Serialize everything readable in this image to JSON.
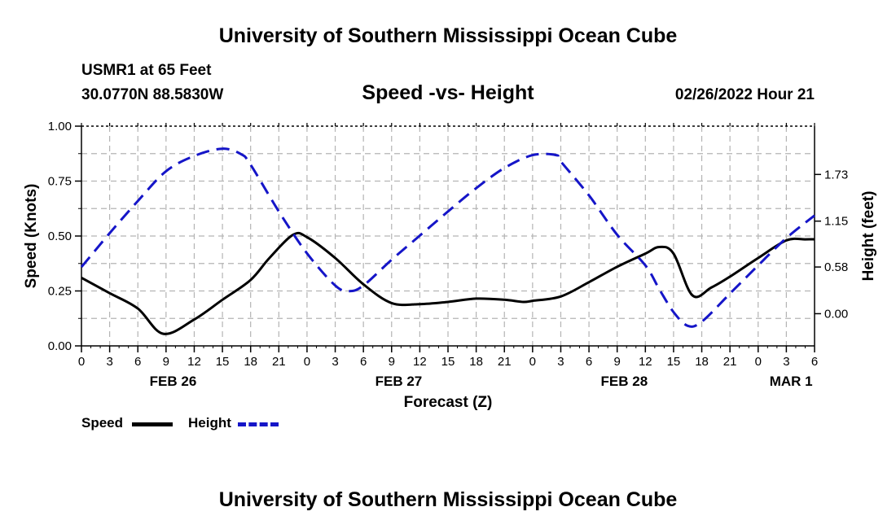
{
  "header": {
    "title": "University of Southern Mississippi Ocean Cube",
    "station": "USMR1 at 65 Feet",
    "coords": "30.0770N  88.5830W",
    "date": "02/26/2022 Hour 21",
    "footer_title": "University of Southern Mississippi Ocean Cube"
  },
  "legend": {
    "speed_label": "Speed",
    "height_label": "Height"
  },
  "colors": {
    "speed": "#000000",
    "height": "#1515c8",
    "grid": "#b4b4b4"
  },
  "chart_data": {
    "type": "line",
    "title": "Speed -vs- Height",
    "xlabel": "Forecast (Z)",
    "ylabel": "Speed (Knots)",
    "y2label": "Height (feet)",
    "x_unit": "hours since FEB 26 00Z",
    "xlim": [
      0,
      78
    ],
    "ylim": [
      0,
      1.0
    ],
    "y2lim": [
      -0.4,
      2.33
    ],
    "x_ticks": [
      0,
      3,
      6,
      9,
      12,
      15,
      18,
      21,
      24,
      27,
      30,
      33,
      36,
      39,
      42,
      45,
      48,
      51,
      54,
      57,
      60,
      63,
      66,
      69,
      72,
      75,
      78
    ],
    "x_tick_labels": [
      "0",
      "3",
      "6",
      "9",
      "12",
      "15",
      "18",
      "21",
      "0",
      "3",
      "6",
      "9",
      "12",
      "15",
      "18",
      "21",
      "0",
      "3",
      "6",
      "9",
      "12",
      "15",
      "18",
      "21",
      "0",
      "3",
      "6"
    ],
    "date_labels": [
      {
        "x": 9.75,
        "label": "FEB 26"
      },
      {
        "x": 33.75,
        "label": "FEB 27"
      },
      {
        "x": 57.75,
        "label": "FEB 28"
      },
      {
        "x": 75.5,
        "label": "MAR 1"
      }
    ],
    "y_ticks": [
      0.0,
      0.25,
      0.5,
      0.75,
      1.0
    ],
    "y_tick_labels": [
      "0.00",
      "0.25",
      "0.50",
      "0.75",
      "1.00"
    ],
    "y2_ticks": [
      0.0,
      0.58,
      1.15,
      1.73
    ],
    "y2_tick_labels": [
      "0.00",
      "0.58",
      "1.15",
      "1.73"
    ],
    "series": [
      {
        "name": "Speed",
        "axis": "left",
        "style": "solid",
        "x": [
          0,
          3,
          6,
          8.7,
          12,
          15,
          18,
          20,
          22.5,
          24,
          27,
          30,
          33,
          36,
          39,
          42,
          45,
          47,
          48,
          51,
          54,
          57,
          60,
          61.5,
          63,
          65,
          67,
          69,
          72,
          75,
          77,
          78
        ],
        "y": [
          0.31,
          0.24,
          0.17,
          0.055,
          0.12,
          0.21,
          0.3,
          0.4,
          0.505,
          0.495,
          0.4,
          0.28,
          0.195,
          0.19,
          0.2,
          0.215,
          0.21,
          0.2,
          0.205,
          0.225,
          0.29,
          0.36,
          0.42,
          0.45,
          0.42,
          0.23,
          0.265,
          0.315,
          0.4,
          0.48,
          0.485,
          0.485
        ]
      },
      {
        "name": "Height",
        "axis": "right",
        "style": "dashed",
        "x": [
          0,
          3,
          6,
          9,
          12,
          15,
          17,
          18,
          21,
          24,
          27,
          28.5,
          30,
          33,
          36,
          39,
          42,
          45,
          48,
          50.5,
          51,
          54,
          57,
          60,
          61.5,
          63,
          64.5,
          66,
          69,
          72,
          75,
          78
        ],
        "y": [
          0.58,
          1.0,
          1.4,
          1.77,
          1.96,
          2.05,
          1.98,
          1.85,
          1.27,
          0.75,
          0.35,
          0.28,
          0.35,
          0.67,
          0.97,
          1.27,
          1.56,
          1.81,
          1.97,
          1.97,
          1.89,
          1.47,
          0.98,
          0.6,
          0.3,
          0.02,
          -0.15,
          -0.1,
          0.25,
          0.6,
          0.94,
          1.22
        ]
      }
    ]
  }
}
